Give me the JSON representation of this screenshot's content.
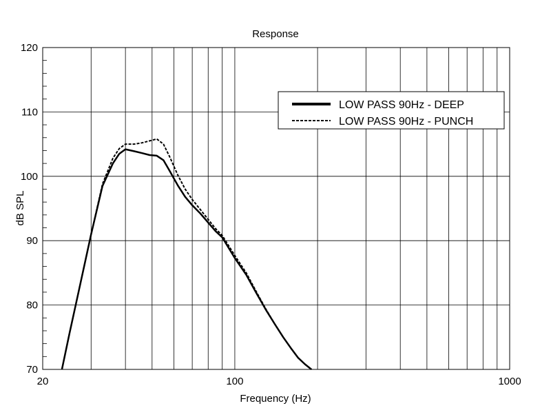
{
  "chart_data": {
    "type": "line",
    "title": "Response",
    "xlabel": "Frequency (Hz)",
    "ylabel": "dB SPL",
    "xscale": "log",
    "xlim": [
      20,
      1000
    ],
    "ylim": [
      70,
      120
    ],
    "xticks": [
      {
        "value": 20,
        "label": "20"
      },
      {
        "value": 100,
        "label": "100"
      },
      {
        "value": 1000,
        "label": "1000"
      }
    ],
    "yticks": [
      {
        "value": 70,
        "label": "70"
      },
      {
        "value": 80,
        "label": "80"
      },
      {
        "value": 90,
        "label": "90"
      },
      {
        "value": 100,
        "label": "100"
      },
      {
        "value": 110,
        "label": "110"
      },
      {
        "value": 120,
        "label": "120"
      }
    ],
    "grid": true,
    "legend_position": "top-right",
    "series": [
      {
        "name": "LOW PASS 90Hz - DEEP",
        "style": "solid",
        "color": "#000000",
        "x": [
          23.5,
          25,
          27,
          30,
          33,
          36,
          38,
          40,
          43,
          46,
          49,
          52,
          55,
          58,
          62,
          66,
          70,
          75,
          80,
          85,
          90,
          100,
          110,
          120,
          130,
          140,
          150,
          160,
          170,
          180,
          190
        ],
        "y": [
          70,
          75.5,
          82,
          91,
          98.5,
          102,
          103.5,
          104.2,
          103.9,
          103.6,
          103.3,
          103.2,
          102.5,
          100.8,
          98.6,
          96.8,
          95.5,
          94.2,
          92.8,
          91.5,
          90.5,
          87.3,
          84.7,
          81.8,
          79.2,
          77,
          75,
          73.3,
          71.8,
          70.8,
          70
        ]
      },
      {
        "name": "LOW PASS 90Hz - PUNCH",
        "style": "dashed",
        "color": "#000000",
        "x": [
          23.5,
          25,
          27,
          30,
          33,
          36,
          38,
          40,
          43,
          46,
          49,
          52,
          55,
          58,
          62,
          66,
          70,
          75,
          80,
          85,
          90,
          100,
          110,
          120,
          130,
          140,
          150,
          160,
          170,
          180,
          190
        ],
        "y": [
          70,
          75.5,
          82,
          91,
          98.8,
          102.8,
          104.3,
          105,
          105,
          105.2,
          105.5,
          105.8,
          105,
          103,
          100.2,
          98,
          96.4,
          94.8,
          93.3,
          91.9,
          90.8,
          87.7,
          85,
          82,
          79.3,
          77,
          75,
          73.3,
          71.8,
          70.8,
          70
        ]
      }
    ]
  }
}
